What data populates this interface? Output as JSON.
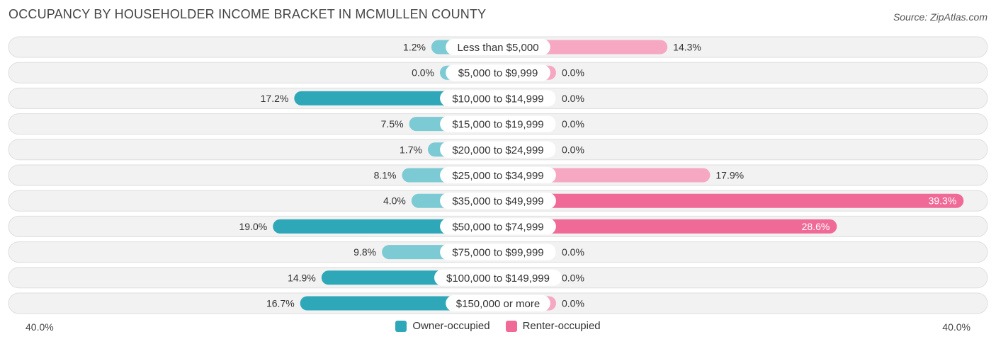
{
  "header": {
    "title": "OCCUPANCY BY HOUSEHOLDER INCOME BRACKET IN MCMULLEN COUNTY",
    "source": "Source: ZipAtlas.com"
  },
  "colors": {
    "owner": "#2ea8b8",
    "owner_light": "#7ccad3",
    "renter": "#f06a97",
    "renter_light": "#f6a8c2",
    "row_bg": "#f2f2f2",
    "row_border": "#dedede"
  },
  "axis": {
    "left_label": "40.0%",
    "right_label": "40.0%"
  },
  "legend": {
    "owner_label": "Owner-occupied",
    "renter_label": "Renter-occupied"
  },
  "chart_data": {
    "type": "bar",
    "orientation": "horizontal-diverging",
    "categories": [
      "Less than $5,000",
      "$5,000 to $9,999",
      "$10,000 to $14,999",
      "$15,000 to $19,999",
      "$20,000 to $24,999",
      "$25,000 to $34,999",
      "$35,000 to $49,999",
      "$50,000 to $74,999",
      "$75,000 to $99,999",
      "$100,000 to $149,999",
      "$150,000 or more"
    ],
    "series": [
      {
        "name": "Owner-occupied",
        "values": [
          1.2,
          0.0,
          17.2,
          7.5,
          1.7,
          8.1,
          4.0,
          19.0,
          9.8,
          14.9,
          16.7
        ],
        "labels": [
          "1.2%",
          "0.0%",
          "17.2%",
          "7.5%",
          "1.7%",
          "8.1%",
          "4.0%",
          "19.0%",
          "9.8%",
          "14.9%",
          "16.7%"
        ]
      },
      {
        "name": "Renter-occupied",
        "values": [
          14.3,
          0.0,
          0.0,
          0.0,
          0.0,
          17.9,
          39.3,
          28.6,
          0.0,
          0.0,
          0.0
        ],
        "labels": [
          "14.3%",
          "0.0%",
          "0.0%",
          "0.0%",
          "0.0%",
          "17.9%",
          "39.3%",
          "28.6%",
          "0.0%",
          "0.0%",
          "0.0%"
        ]
      }
    ],
    "xlim": [
      -40,
      40
    ],
    "legend_position": "bottom-center",
    "grid": false
  }
}
